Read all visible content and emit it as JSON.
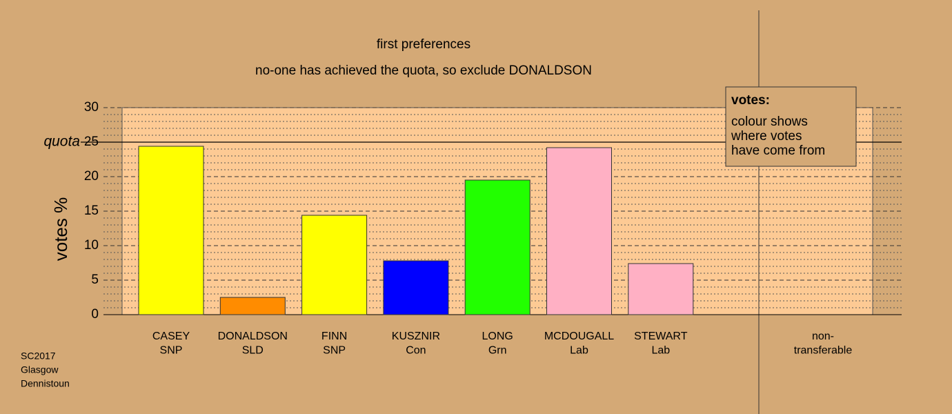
{
  "chart_data": {
    "type": "bar",
    "title": "first preferences",
    "subtitle": "no-one has achieved the quota, so exclude DONALDSON",
    "y_label": "votes %",
    "categories": [
      [
        "CASEY",
        "SNP"
      ],
      [
        "DONALDSON",
        "SLD"
      ],
      [
        "FINN",
        "SNP"
      ],
      [
        "KUSZNIR",
        "Con"
      ],
      [
        "LONG",
        "Grn"
      ],
      [
        "MCDOUGALL",
        "Lab"
      ],
      [
        "STEWART",
        "Lab"
      ],
      [
        "non-",
        "transferable"
      ]
    ],
    "values": [
      24.4,
      2.5,
      14.4,
      7.8,
      19.5,
      24.2,
      7.4,
      0
    ],
    "colors": [
      "#ffff00",
      "#ff8c00",
      "#ffff00",
      "#0000ff",
      "#22ff00",
      "#ffb0c4",
      "#ffb0c4",
      "#ffb0c4"
    ],
    "ylim": [
      0,
      30
    ],
    "yticks": [
      0,
      5,
      10,
      15,
      20,
      25,
      30
    ],
    "yminor": [
      1,
      2,
      3,
      4,
      6,
      7,
      8,
      9,
      11,
      12,
      13,
      14,
      16,
      17,
      18,
      19,
      21,
      22,
      23,
      24,
      26,
      27,
      28,
      29
    ],
    "quota": {
      "label": "quota",
      "value": 25
    },
    "legend": {
      "title": "votes:",
      "lines": [
        "colour shows",
        "where votes",
        "have come from"
      ]
    },
    "footer": [
      "SC2017",
      "Glasgow",
      "Dennistoun"
    ],
    "grid": true
  }
}
